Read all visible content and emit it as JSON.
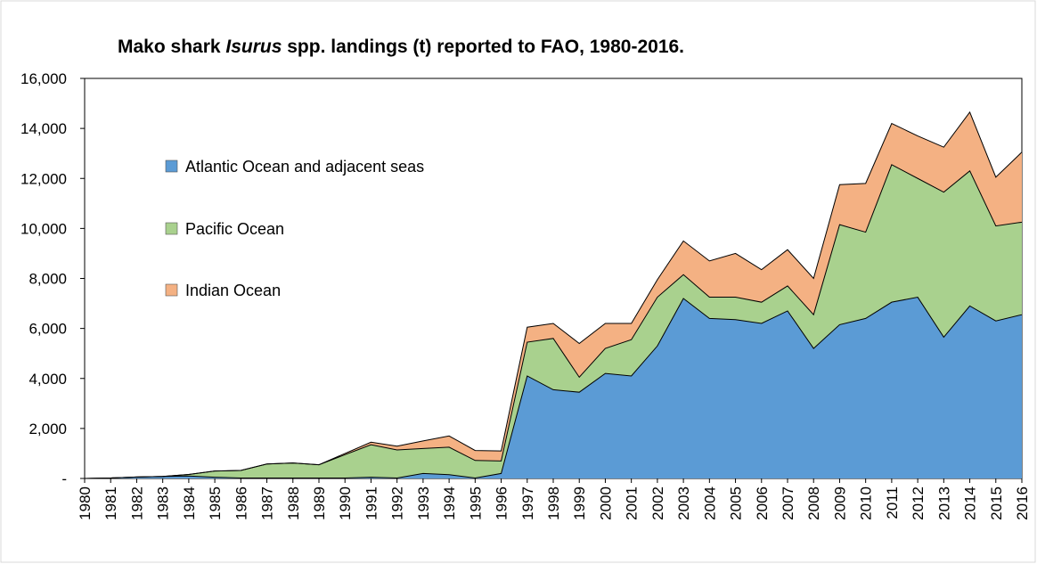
{
  "chart_data": {
    "type": "area",
    "stacked": true,
    "title_parts": [
      {
        "text": "Mako shark ",
        "italic": false
      },
      {
        "text": "Isurus",
        "italic": true
      },
      {
        "text": " spp. landings (t) reported to FAO, 1980-2016.",
        "italic": false
      }
    ],
    "x": [
      "1980",
      "1981",
      "1982",
      "1983",
      "1984",
      "1985",
      "1986",
      "1987",
      "1988",
      "1989",
      "1990",
      "1991",
      "1992",
      "1993",
      "1994",
      "1995",
      "1996",
      "1997",
      "1998",
      "1999",
      "2000",
      "2001",
      "2002",
      "2003",
      "2004",
      "2005",
      "2006",
      "2007",
      "2008",
      "2009",
      "2010",
      "2011",
      "2012",
      "2013",
      "2014",
      "2015",
      "2016"
    ],
    "ylim": [
      0,
      16000
    ],
    "yticks": [
      0,
      2000,
      4000,
      6000,
      8000,
      10000,
      12000,
      14000,
      16000
    ],
    "ytick_labels": [
      "-",
      "2,000",
      "4,000",
      "6,000",
      "8,000",
      "10,000",
      "12,000",
      "14,000",
      "16,000"
    ],
    "grid": false,
    "legend_position": "left",
    "series": [
      {
        "name": "Atlantic Ocean and adjacent seas",
        "color": "#5b9bd5",
        "values": [
          0,
          20,
          60,
          80,
          100,
          50,
          20,
          20,
          20,
          20,
          20,
          50,
          20,
          200,
          150,
          20,
          200,
          4100,
          3550,
          3450,
          4200,
          4100,
          5300,
          7200,
          6400,
          6350,
          6200,
          6700,
          5200,
          6150,
          6400,
          7050,
          7250,
          5650,
          6900,
          6300,
          6550
        ]
      },
      {
        "name": "Pacific Ocean",
        "color": "#a9d18e",
        "values": [
          0,
          0,
          0,
          0,
          60,
          250,
          300,
          560,
          600,
          530,
          930,
          1300,
          1120,
          1000,
          1100,
          700,
          500,
          1350,
          2050,
          600,
          1000,
          1450,
          1950,
          950,
          850,
          900,
          850,
          1000,
          1350,
          4000,
          3450,
          5500,
          4750,
          5800,
          5400,
          3800,
          3700
        ]
      },
      {
        "name": "Indian Ocean",
        "color": "#f4b183",
        "values": [
          0,
          0,
          0,
          0,
          0,
          0,
          0,
          0,
          0,
          0,
          50,
          100,
          150,
          300,
          450,
          400,
          400,
          600,
          600,
          1350,
          1000,
          650,
          700,
          1350,
          1450,
          1750,
          1300,
          1450,
          1450,
          1600,
          1950,
          1650,
          1700,
          1800,
          2350,
          1950,
          2800
        ]
      }
    ]
  }
}
